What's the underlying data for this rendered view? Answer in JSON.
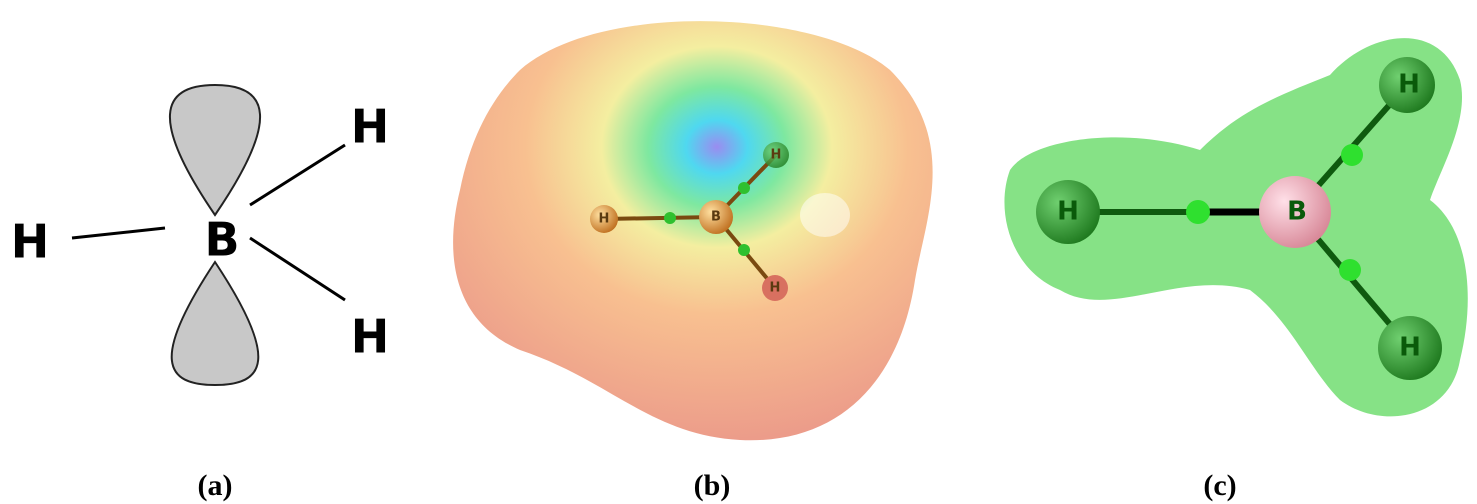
{
  "panels": [
    {
      "label": "(a)",
      "atoms": [
        "H",
        "B",
        "H",
        "H"
      ]
    },
    {
      "label": "(b)",
      "atoms": [
        "H",
        "B",
        "H",
        "H"
      ]
    },
    {
      "label": "(c)",
      "atoms": [
        "H",
        "B",
        "H",
        "H"
      ]
    }
  ]
}
